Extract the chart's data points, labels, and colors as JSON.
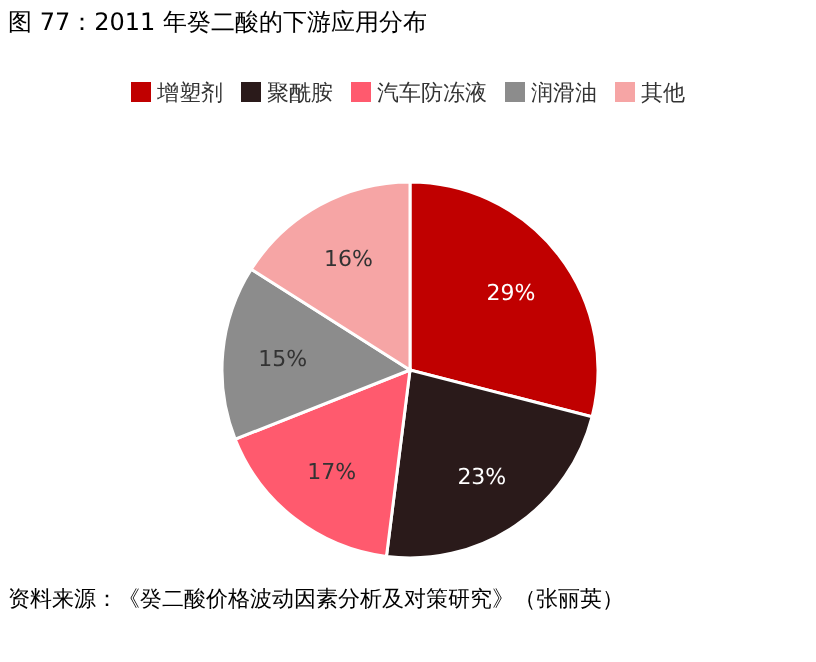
{
  "chart_data": {
    "type": "pie",
    "title": "图 77：2011 年癸二酸的下游应用分布",
    "categories": [
      "增塑剂",
      "聚酰胺",
      "汽车防冻液",
      "润滑油",
      "其他"
    ],
    "values": [
      29,
      23,
      17,
      15,
      16
    ],
    "colors": [
      "#c00000",
      "#2a1a1a",
      "#ff5a6e",
      "#8c8c8c",
      "#f6a5a5"
    ],
    "legend": "top",
    "value_labels": [
      "29%",
      "23%",
      "17%",
      "15%",
      "16%"
    ],
    "annotations": [
      "资料来源：《癸二酸价格波动因素分析及对策研究》（张丽英）"
    ]
  }
}
